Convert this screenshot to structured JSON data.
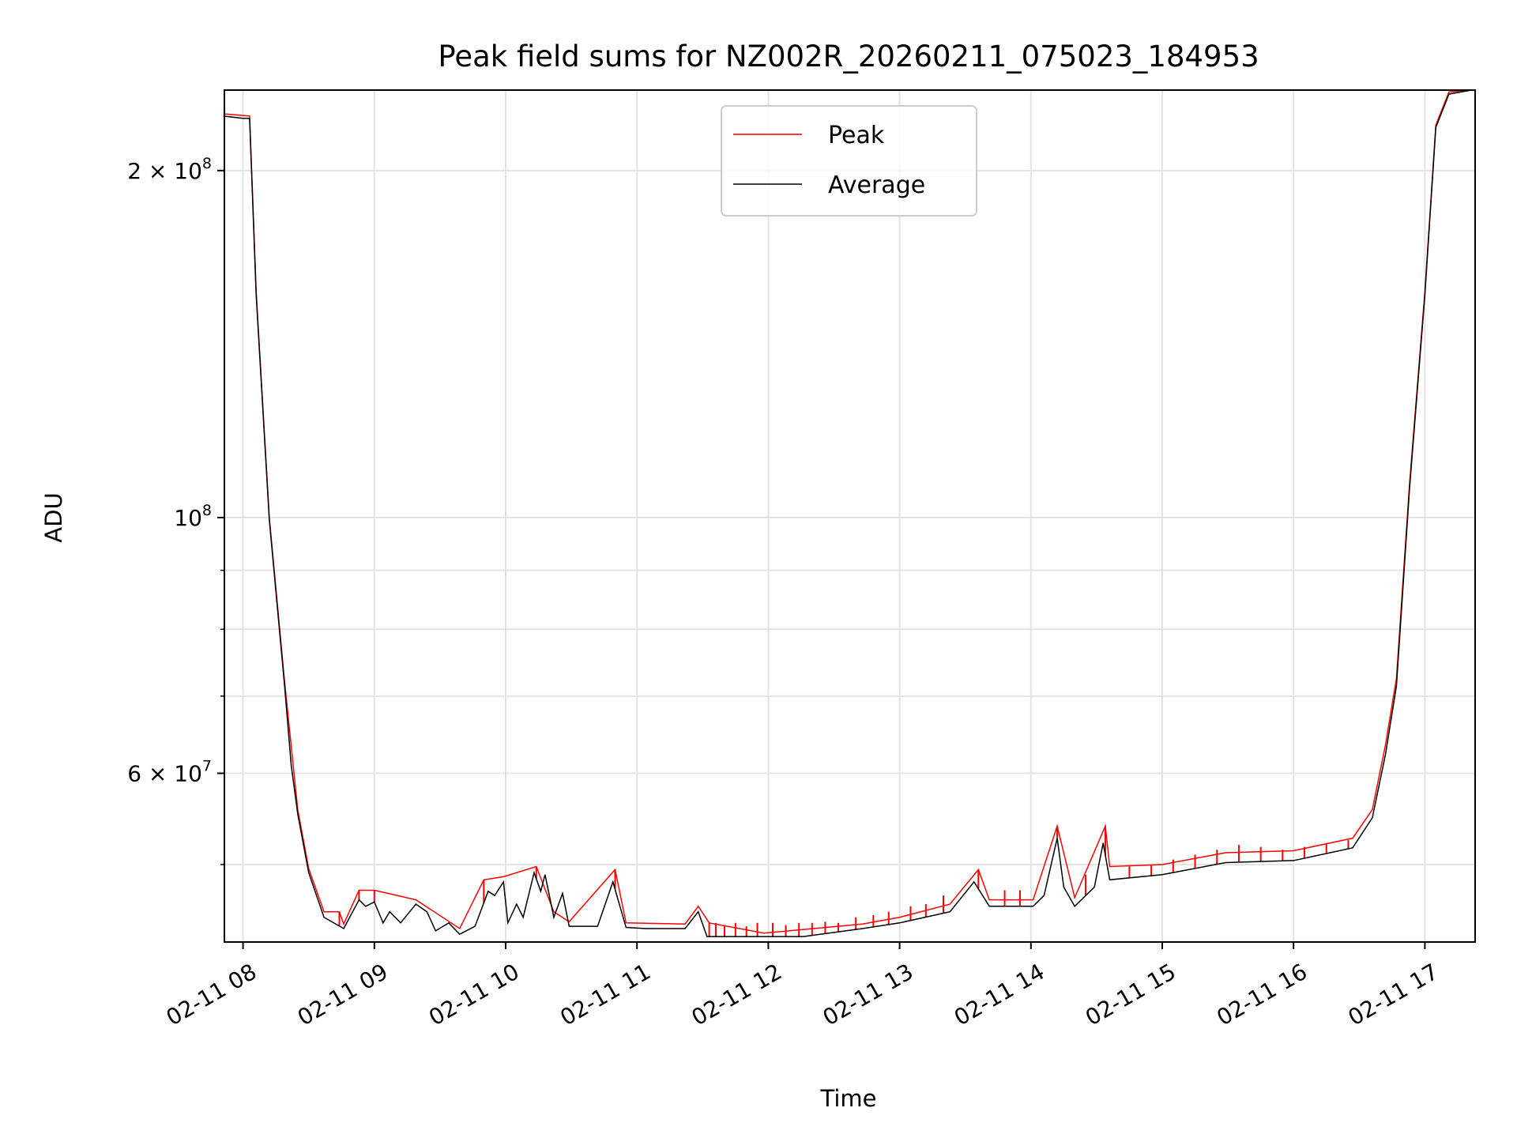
{
  "chart_data": {
    "type": "line",
    "title": "Peak field sums for NZ002R_20260211_075023_184953",
    "xlabel": "Time",
    "ylabel": "ADU",
    "yscale": "log",
    "ylim": [
      42800000.0,
      235000000.0
    ],
    "xlim": [
      "07:51",
      "17:23"
    ],
    "grid": true,
    "legend": {
      "placement": "upper-center",
      "entries": [
        "Peak",
        "Average"
      ]
    },
    "colors": {
      "Peak": "#ff0000",
      "Average": "#000000"
    },
    "x_ticks": [
      {
        "time": "08:00",
        "label": "02-11 08"
      },
      {
        "time": "09:00",
        "label": "02-11 09"
      },
      {
        "time": "10:00",
        "label": "02-11 10"
      },
      {
        "time": "11:00",
        "label": "02-11 11"
      },
      {
        "time": "12:00",
        "label": "02-11 12"
      },
      {
        "time": "13:00",
        "label": "02-11 13"
      },
      {
        "time": "14:00",
        "label": "02-11 14"
      },
      {
        "time": "15:00",
        "label": "02-11 15"
      },
      {
        "time": "16:00",
        "label": "02-11 16"
      },
      {
        "time": "17:00",
        "label": "02-11 17"
      }
    ],
    "y_ticks": [
      {
        "value": 200000000.0,
        "mantissa": "2 × 10",
        "exponent": "8"
      },
      {
        "value": 100000000.0,
        "mantissa": "10",
        "exponent": "8"
      },
      {
        "value": 60000000.0,
        "mantissa": "6 × 10",
        "exponent": "7"
      }
    ],
    "y_minor_ticks": [
      50000000.0,
      70000000.0,
      80000000.0,
      90000000.0
    ],
    "series": [
      {
        "name": "Average",
        "points": [
          [
            "07:51",
            223000000.0
          ],
          [
            "08:00",
            222000000.0
          ],
          [
            "08:03",
            222000000.0
          ],
          [
            "08:06",
            156000000.0
          ],
          [
            "08:12",
            99600000.0
          ],
          [
            "08:19",
            71400000.0
          ],
          [
            "08:22",
            61000000.0
          ],
          [
            "08:25",
            55300000.0
          ],
          [
            "08:30",
            49200000.0
          ],
          [
            "08:37",
            45000000.0
          ],
          [
            "08:46",
            44000000.0
          ],
          [
            "08:53",
            46600000.0
          ],
          [
            "08:56",
            46000000.0
          ],
          [
            "09:00",
            46400000.0
          ],
          [
            "09:04",
            44500000.0
          ],
          [
            "09:07",
            45500000.0
          ],
          [
            "09:12",
            44500000.0
          ],
          [
            "09:19",
            46200000.0
          ],
          [
            "09:24",
            45500000.0
          ],
          [
            "09:28",
            43800000.0
          ],
          [
            "09:34",
            44500000.0
          ],
          [
            "09:39",
            43500000.0
          ],
          [
            "09:46",
            44200000.0
          ],
          [
            "09:52",
            47400000.0
          ],
          [
            "09:55",
            47000000.0
          ],
          [
            "09:59",
            48300000.0
          ],
          [
            "10:01",
            44500000.0
          ],
          [
            "10:05",
            46200000.0
          ],
          [
            "10:08",
            45000000.0
          ],
          [
            "10:13",
            49200000.0
          ],
          [
            "10:16",
            47400000.0
          ],
          [
            "10:18",
            49000000.0
          ],
          [
            "10:22",
            45000000.0
          ],
          [
            "10:26",
            47200000.0
          ],
          [
            "10:29",
            44200000.0
          ],
          [
            "10:35",
            44200000.0
          ],
          [
            "10:42",
            44200000.0
          ],
          [
            "10:49",
            48300000.0
          ],
          [
            "10:55",
            44100000.0
          ],
          [
            "11:04",
            44000000.0
          ],
          [
            "11:22",
            44000000.0
          ],
          [
            "11:28",
            45500000.0
          ],
          [
            "11:32",
            43300000.0
          ],
          [
            "11:58",
            43300000.0
          ],
          [
            "12:16",
            43300000.0
          ],
          [
            "12:43",
            44000000.0
          ],
          [
            "13:00",
            44500000.0
          ],
          [
            "13:23",
            45500000.0
          ],
          [
            "13:34",
            48300000.0
          ],
          [
            "13:41",
            46000000.0
          ],
          [
            "14:01",
            46000000.0
          ],
          [
            "14:06",
            47000000.0
          ],
          [
            "14:12",
            52700000.0
          ],
          [
            "14:15",
            47800000.0
          ],
          [
            "14:20",
            46000000.0
          ],
          [
            "14:29",
            47800000.0
          ],
          [
            "14:33",
            52200000.0
          ],
          [
            "14:36",
            48500000.0
          ],
          [
            "15:00",
            49000000.0
          ],
          [
            "15:29",
            50200000.0
          ],
          [
            "16:00",
            50400000.0
          ],
          [
            "16:27",
            51700000.0
          ],
          [
            "16:36",
            54900000.0
          ],
          [
            "16:42",
            62300000.0
          ],
          [
            "16:47",
            71400000.0
          ],
          [
            "16:53",
            106000000.0
          ],
          [
            "17:00",
            156000000.0
          ],
          [
            "17:05",
            218000000.0
          ],
          [
            "17:11",
            233000000.0
          ],
          [
            "17:22",
            235000000.0
          ]
        ]
      },
      {
        "name": "Peak",
        "points": [
          [
            "07:51",
            224000000.0
          ],
          [
            "08:03",
            223000000.0
          ],
          [
            "08:06",
            157000000.0
          ],
          [
            "08:12",
            100000000.0
          ],
          [
            "08:19",
            72000000.0
          ],
          [
            "08:25",
            55800000.0
          ],
          [
            "08:30",
            49600000.0
          ],
          [
            "08:37",
            45500000.0
          ],
          [
            "08:44",
            45500000.0
          ],
          [
            "08:46",
            44400000.0
          ],
          [
            "08:53",
            47500000.0
          ],
          [
            "09:00",
            47500000.0
          ],
          [
            "09:19",
            46600000.0
          ],
          [
            "09:39",
            44000000.0
          ],
          [
            "09:50",
            48500000.0
          ],
          [
            "09:59",
            48800000.0
          ],
          [
            "10:14",
            49800000.0
          ],
          [
            "10:22",
            45500000.0
          ],
          [
            "10:29",
            44600000.0
          ],
          [
            "10:50",
            49500000.0
          ],
          [
            "10:55",
            44500000.0
          ],
          [
            "11:22",
            44400000.0
          ],
          [
            "11:28",
            46000000.0
          ],
          [
            "11:33",
            44500000.0
          ],
          [
            "11:58",
            43600000.0
          ],
          [
            "12:43",
            44400000.0
          ],
          [
            "13:00",
            45000000.0
          ],
          [
            "13:23",
            46200000.0
          ],
          [
            "13:36",
            49500000.0
          ],
          [
            "13:41",
            46600000.0
          ],
          [
            "14:01",
            46600000.0
          ],
          [
            "14:12",
            54000000.0
          ],
          [
            "14:20",
            46800000.0
          ],
          [
            "14:34",
            54000000.0
          ],
          [
            "14:36",
            49800000.0
          ],
          [
            "15:00",
            50000000.0
          ],
          [
            "15:29",
            51200000.0
          ],
          [
            "16:00",
            51400000.0
          ],
          [
            "16:27",
            52700000.0
          ],
          [
            "16:36",
            55800000.0
          ],
          [
            "16:42",
            63500000.0
          ],
          [
            "16:47",
            72500000.0
          ],
          [
            "16:53",
            107000000.0
          ],
          [
            "17:00",
            157000000.0
          ],
          [
            "17:05",
            219000000.0
          ],
          [
            "17:11",
            234000000.0
          ],
          [
            "17:22",
            235000000.0
          ]
        ]
      }
    ],
    "peak_spikes": [
      [
        "08:44",
        45500000.0
      ],
      [
        "08:53",
        47500000.0
      ],
      [
        "09:00",
        47500000.0
      ],
      [
        "09:50",
        48500000.0
      ],
      [
        "10:14",
        49800000.0
      ],
      [
        "10:50",
        49500000.0
      ],
      [
        "11:33",
        44500000.0
      ],
      [
        "11:36",
        44500000.0
      ],
      [
        "11:40",
        44300000.0
      ],
      [
        "11:45",
        44500000.0
      ],
      [
        "11:50",
        44200000.0
      ],
      [
        "11:55",
        44500000.0
      ],
      [
        "12:02",
        44500000.0
      ],
      [
        "12:08",
        44300000.0
      ],
      [
        "12:14",
        44500000.0
      ],
      [
        "12:20",
        44500000.0
      ],
      [
        "12:26",
        44600000.0
      ],
      [
        "12:32",
        44500000.0
      ],
      [
        "12:40",
        45000000.0
      ],
      [
        "12:48",
        45200000.0
      ],
      [
        "12:55",
        45500000.0
      ],
      [
        "13:05",
        46000000.0
      ],
      [
        "13:12",
        46200000.0
      ],
      [
        "13:20",
        47000000.0
      ],
      [
        "13:36",
        49500000.0
      ],
      [
        "13:48",
        47500000.0
      ],
      [
        "13:55",
        47500000.0
      ],
      [
        "14:12",
        54000000.0
      ],
      [
        "14:25",
        49000000.0
      ],
      [
        "14:34",
        54000000.0
      ],
      [
        "14:45",
        49800000.0
      ],
      [
        "14:55",
        50000000.0
      ],
      [
        "15:05",
        50500000.0
      ],
      [
        "15:15",
        51000000.0
      ],
      [
        "15:25",
        51500000.0
      ],
      [
        "15:35",
        52000000.0
      ],
      [
        "15:45",
        51800000.0
      ],
      [
        "15:55",
        51500000.0
      ],
      [
        "16:05",
        51800000.0
      ],
      [
        "16:15",
        52200000.0
      ],
      [
        "16:25",
        52500000.0
      ]
    ]
  }
}
